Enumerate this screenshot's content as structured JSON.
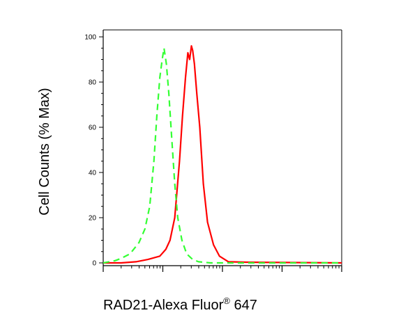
{
  "chart_data": {
    "type": "line",
    "title": "",
    "xlabel": "RAD21-Alexa Fluor",
    "xlabel_superscript": "®",
    "xlabel_suffix": " 647",
    "ylabel": "Cell Counts (% Max)",
    "ylim": [
      0,
      100
    ],
    "yticks": [
      0,
      20,
      40,
      60,
      80,
      100
    ],
    "ytick_labels": [
      "0",
      "20",
      "40",
      "60",
      "80",
      "100"
    ],
    "x_scale": "log",
    "x_decades": 4,
    "x_range": [
      0,
      4
    ],
    "grid": false,
    "legend": "none",
    "series": [
      {
        "color": "#ff0000",
        "line_style": "solid",
        "points": [
          [
            0,
            0
          ],
          [
            0.3,
            0
          ],
          [
            0.55,
            0.5
          ],
          [
            0.75,
            1.5
          ],
          [
            0.95,
            3
          ],
          [
            1.05,
            6
          ],
          [
            1.12,
            10
          ],
          [
            1.2,
            20
          ],
          [
            1.28,
            45
          ],
          [
            1.33,
            65
          ],
          [
            1.38,
            82
          ],
          [
            1.42,
            93
          ],
          [
            1.45,
            90
          ],
          [
            1.48,
            96
          ],
          [
            1.5,
            94
          ],
          [
            1.53,
            88
          ],
          [
            1.57,
            75
          ],
          [
            1.62,
            60
          ],
          [
            1.68,
            35
          ],
          [
            1.75,
            18
          ],
          [
            1.85,
            8
          ],
          [
            1.95,
            3
          ],
          [
            2.1,
            0.5
          ],
          [
            2.4,
            0.3
          ],
          [
            3.0,
            0.2
          ],
          [
            4.0,
            0
          ]
        ]
      },
      {
        "color": "#33ff33",
        "line_style": "dashed",
        "points": [
          [
            0,
            0
          ],
          [
            0.1,
            0.5
          ],
          [
            0.2,
            1
          ],
          [
            0.3,
            2
          ],
          [
            0.45,
            4
          ],
          [
            0.6,
            9
          ],
          [
            0.7,
            15
          ],
          [
            0.78,
            25
          ],
          [
            0.85,
            45
          ],
          [
            0.9,
            65
          ],
          [
            0.95,
            82
          ],
          [
            0.99,
            90
          ],
          [
            1.02,
            95
          ],
          [
            1.06,
            88
          ],
          [
            1.1,
            75
          ],
          [
            1.15,
            55
          ],
          [
            1.2,
            35
          ],
          [
            1.25,
            20
          ],
          [
            1.32,
            10
          ],
          [
            1.4,
            4
          ],
          [
            1.5,
            1.5
          ],
          [
            1.6,
            0.5
          ],
          [
            1.8,
            0
          ],
          [
            4.0,
            0
          ]
        ]
      }
    ]
  }
}
